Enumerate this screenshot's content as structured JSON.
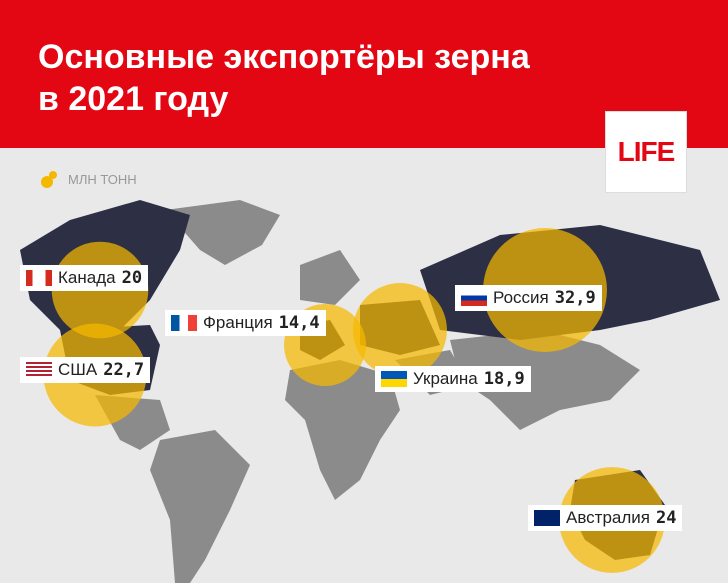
{
  "chart_data": {
    "type": "bubble-map",
    "title": "Основные экспортёры зерна в 2021 году",
    "unit": "МЛН ТОНН",
    "logo": "LIFE",
    "color": "#f5b800",
    "categories": [
      "Канада",
      "США",
      "Франция",
      "Украина",
      "Россия",
      "Австралия"
    ],
    "values": [
      20,
      22.7,
      14.4,
      18.9,
      32.9,
      24
    ],
    "value_labels": [
      "20",
      "22,7",
      "14,4",
      "18,9",
      "32,9",
      "24"
    ]
  }
}
